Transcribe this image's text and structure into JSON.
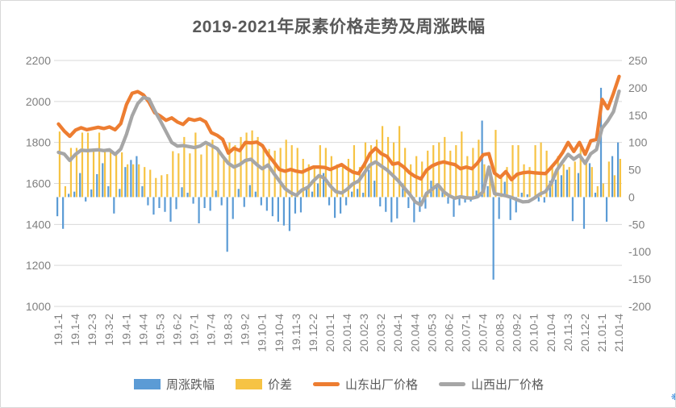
{
  "title": "2019-2021年尿素价格走势及周涨跌幅",
  "colors": {
    "background": "#ffffff",
    "frame_border": "#d8d8d8",
    "grid": "#d9d9d9",
    "axis_text": "#7f7f7f",
    "title_text": "#595959",
    "legend_text": "#595959",
    "bar_blue": "#5b9bd5",
    "bar_yellow": "#f6c344",
    "line_orange": "#ed7d31",
    "line_gray": "#a6a6a6"
  },
  "watermark": {
    "glyph": "❋"
  },
  "chart_data": {
    "type": "combo-bar-line",
    "title": "2019-2021年尿素价格走势及周涨跌幅",
    "n_points": 100,
    "x_label_every_n_points": 3,
    "x_tick_labels": [
      "19.1-1",
      "19.1-4",
      "19.2-3",
      "19.3-2",
      "19.4-1",
      "19.4-4",
      "19.5-3",
      "19.6-2",
      "19.7-1",
      "19.7-4",
      "19.8-3",
      "19.9-2",
      "19.10-1",
      "19.10-4",
      "19.11-3",
      "19.12-2",
      "20.01-1",
      "20.01-4",
      "20.02-3",
      "20.03-2",
      "20.04-1",
      "20.04-4",
      "20.05-3",
      "20.06-2",
      "20.07-1",
      "20.07-4",
      "20.08-3",
      "20.09-2",
      "20.10-1",
      "20.10-4",
      "20.11-3",
      "20.12-2",
      "21.01-1",
      "21.01-4"
    ],
    "left_axis": {
      "min": 1000,
      "max": 2200,
      "ticks": [
        2200,
        2000,
        1800,
        1600,
        1400,
        1200,
        1000
      ]
    },
    "right_axis": {
      "min": -200,
      "max": 250,
      "ticks": [
        250,
        200,
        150,
        100,
        50,
        0,
        -50,
        -100,
        -150,
        -200
      ]
    },
    "grid": "horizontal",
    "legend_position": "bottom",
    "series": [
      {
        "name": "周涨跌幅",
        "type": "bar",
        "axis": "right",
        "color": "#5b9bd5",
        "values": [
          -35,
          -58,
          6,
          10,
          44,
          -8,
          14,
          42,
          62,
          20,
          -30,
          15,
          55,
          68,
          75,
          20,
          -15,
          -32,
          -20,
          -27,
          -45,
          -22,
          18,
          8,
          -12,
          -48,
          -20,
          -25,
          12,
          -15,
          -100,
          -40,
          15,
          -18,
          22,
          10,
          -15,
          -25,
          -35,
          -45,
          -52,
          -62,
          -30,
          -28,
          20,
          10,
          25,
          44,
          -15,
          -38,
          -30,
          -15,
          10,
          15,
          8,
          50,
          30,
          -17,
          -27,
          -46,
          -39,
          25,
          -20,
          -46,
          -27,
          -21,
          30,
          20,
          15,
          -12,
          -36,
          -15,
          -10,
          -8,
          12,
          140,
          20,
          -151,
          -40,
          28,
          -42,
          -28,
          8,
          5,
          -5,
          -8,
          -10,
          30,
          32,
          40,
          50,
          -44,
          44,
          -58,
          62,
          8,
          200,
          -45,
          75,
          100
        ]
      },
      {
        "name": "价差",
        "type": "bar",
        "axis": "right",
        "color": "#f6c344",
        "values": [
          120,
          20,
          90,
          90,
          118,
          118,
          88,
          118,
          88,
          85,
          80,
          82,
          60,
          60,
          60,
          55,
          50,
          35,
          40,
          42,
          84,
          80,
          110,
          80,
          118,
          78,
          95,
          105,
          90,
          75,
          100,
          95,
          110,
          118,
          122,
          110,
          95,
          88,
          85,
          90,
          105,
          95,
          90,
          70,
          60,
          55,
          95,
          90,
          75,
          60,
          55,
          70,
          95,
          55,
          100,
          95,
          105,
          130,
          110,
          100,
          130,
          90,
          60,
          75,
          65,
          85,
          95,
          100,
          110,
          85,
          95,
          120,
          75,
          90,
          105,
          60,
          50,
          123,
          40,
          55,
          95,
          95,
          60,
          55,
          95,
          100,
          85,
          55,
          75,
          60,
          55,
          65,
          90,
          70,
          55,
          20,
          25,
          65,
          40,
          70
        ]
      },
      {
        "name": "山东出厂价格",
        "type": "line",
        "axis": "left",
        "color": "#ed7d31",
        "values": [
          1890,
          1856,
          1830,
          1860,
          1872,
          1862,
          1868,
          1874,
          1868,
          1876,
          1862,
          1892,
          1985,
          2040,
          2048,
          2032,
          1996,
          1945,
          1928,
          1908,
          1920,
          1900,
          1888,
          1915,
          1908,
          1915,
          1900,
          1848,
          1835,
          1815,
          1748,
          1772,
          1760,
          1800,
          1798,
          1802,
          1785,
          1740,
          1705,
          1668,
          1660,
          1668,
          1660,
          1655,
          1668,
          1680,
          1680,
          1678,
          1668,
          1680,
          1692,
          1672,
          1655,
          1648,
          1692,
          1745,
          1772,
          1745,
          1732,
          1694,
          1700,
          1680,
          1652,
          1634,
          1622,
          1665,
          1686,
          1698,
          1705,
          1698,
          1692,
          1672,
          1680,
          1672,
          1700,
          1740,
          1745,
          1650,
          1630,
          1658,
          1618,
          1645,
          1652,
          1655,
          1652,
          1650,
          1648,
          1678,
          1710,
          1750,
          1800,
          1756,
          1800,
          1742,
          1808,
          1815,
          2010,
          1965,
          2040,
          2122
        ]
      },
      {
        "name": "山西出厂价格",
        "type": "line",
        "axis": "left",
        "color": "#a6a6a6",
        "values": [
          1752,
          1744,
          1712,
          1742,
          1762,
          1760,
          1762,
          1764,
          1760,
          1764,
          1742,
          1768,
          1840,
          1930,
          1990,
          2020,
          2012,
          1955,
          1905,
          1852,
          1800,
          1782,
          1785,
          1780,
          1775,
          1782,
          1800,
          1785,
          1770,
          1732,
          1698,
          1680,
          1692,
          1712,
          1718,
          1692,
          1672,
          1690,
          1650,
          1612,
          1575,
          1555,
          1542,
          1568,
          1580,
          1612,
          1638,
          1625,
          1588,
          1560,
          1553,
          1572,
          1598,
          1612,
          1652,
          1690,
          1705,
          1685,
          1666,
          1640,
          1613,
          1580,
          1548,
          1510,
          1495,
          1552,
          1572,
          1594,
          1560,
          1540,
          1528,
          1535,
          1530,
          1528,
          1535,
          1560,
          1680,
          1550,
          1545,
          1540,
          1532,
          1520,
          1510,
          1512,
          1528,
          1548,
          1560,
          1600,
          1665,
          1705,
          1742,
          1718,
          1738,
          1698,
          1745,
          1765,
          1870,
          1905,
          1950,
          2050
        ]
      }
    ]
  }
}
